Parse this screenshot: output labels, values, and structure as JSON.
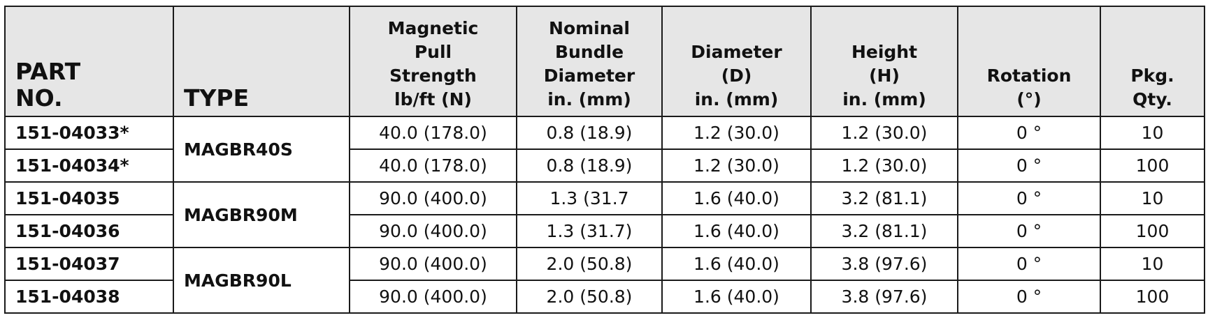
{
  "headers": {
    "part": [
      "PART",
      "NO."
    ],
    "type": [
      "TYPE"
    ],
    "pull": [
      "Magnetic",
      "Pull",
      "Strength",
      "lb/ft (N)"
    ],
    "bundle": [
      "Nominal",
      "Bundle",
      "Diameter",
      "in. (mm)"
    ],
    "diameter": [
      "Diameter",
      "(D)",
      "in. (mm)"
    ],
    "height": [
      "Height",
      "(H)",
      "in. (mm)"
    ],
    "rotation": [
      "Rotation",
      "(°)"
    ],
    "qty": [
      "Pkg.",
      "Qty."
    ]
  },
  "rows": [
    {
      "part": "151-04033*",
      "pull": "40.0 (178.0)",
      "bundle": "0.8 (18.9)",
      "diameter": "1.2 (30.0)",
      "height": "1.2 (30.0)",
      "rotation": "0 °",
      "qty": "10"
    },
    {
      "part": "151-04034*",
      "pull": "40.0 (178.0)",
      "bundle": "0.8 (18.9)",
      "diameter": "1.2 (30.0)",
      "height": "1.2 (30.0)",
      "rotation": "0 °",
      "qty": "100"
    },
    {
      "part": "151-04035",
      "pull": "90.0 (400.0)",
      "bundle": "1.3 (31.7",
      "diameter": "1.6 (40.0)",
      "height": "3.2 (81.1)",
      "rotation": "0 °",
      "qty": "10"
    },
    {
      "part": "151-04036",
      "pull": "90.0 (400.0)",
      "bundle": "1.3 (31.7)",
      "diameter": "1.6 (40.0)",
      "height": "3.2 (81.1)",
      "rotation": "0 °",
      "qty": "100"
    },
    {
      "part": "151-04037",
      "pull": "90.0 (400.0)",
      "bundle": "2.0 (50.8)",
      "diameter": "1.6 (40.0)",
      "height": "3.8 (97.6)",
      "rotation": "0 °",
      "qty": "10"
    },
    {
      "part": "151-04038",
      "pull": "90.0 (400.0)",
      "bundle": "2.0 (50.8)",
      "diameter": "1.6 (40.0)",
      "height": "3.8 (97.6)",
      "rotation": "0 °",
      "qty": "100"
    }
  ],
  "types": [
    "MAGBR40S",
    "MAGBR90M",
    "MAGBR90L"
  ],
  "colors": {
    "header_bg": "#e6e6e6",
    "border": "#1a1a1a",
    "text": "#111111"
  }
}
